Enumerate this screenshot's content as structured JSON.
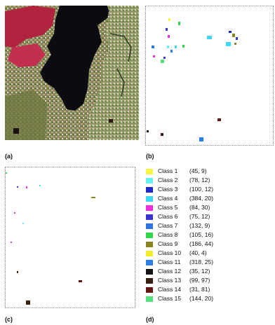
{
  "panels": {
    "a": {
      "label": "(a)"
    },
    "b": {
      "label": "(b)"
    },
    "c": {
      "label": "(c)"
    },
    "d": {
      "label": "(d)"
    }
  },
  "classes": [
    {
      "name": "Class 1",
      "count": "(45, 9)",
      "color": "#f5f542"
    },
    {
      "name": "Class 2",
      "count": "(78, 12)",
      "color": "#66f0f5"
    },
    {
      "name": "Class 3",
      "count": "(100, 12)",
      "color": "#1f2acb"
    },
    {
      "name": "Class 4",
      "count": "(384, 20)",
      "color": "#3fd6f1"
    },
    {
      "name": "Class 5",
      "count": "(84, 30)",
      "color": "#ee2ddf"
    },
    {
      "name": "Class 6",
      "count": "(75, 12)",
      "color": "#3a35d0"
    },
    {
      "name": "Class 7",
      "count": "(132, 9)",
      "color": "#2f73e6"
    },
    {
      "name": "Class 8",
      "count": "(105, 16)",
      "color": "#2fd648"
    },
    {
      "name": "Class 9",
      "count": "(186, 44)",
      "color": "#8a8520"
    },
    {
      "name": "Class 10",
      "count": "(40, 4)",
      "color": "#f3ec2c"
    },
    {
      "name": "Class 11",
      "count": "(318, 25)",
      "color": "#2c80e3"
    },
    {
      "name": "Class 12",
      "count": "(35, 12)",
      "color": "#141414"
    },
    {
      "name": "Class 13",
      "count": "(99, 97)",
      "color": "#3a1f14"
    },
    {
      "name": "Class 14",
      "count": "(31, 81)",
      "color": "#621812"
    },
    {
      "name": "Class 15",
      "count": "(144, 20)",
      "color": "#55e07c"
    }
  ]
}
